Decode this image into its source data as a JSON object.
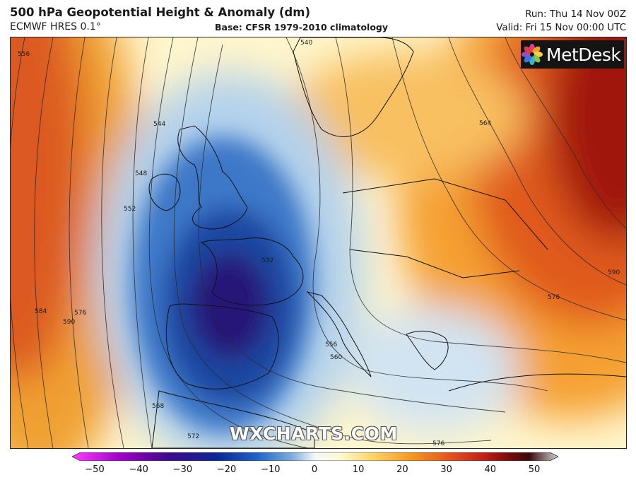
{
  "header": {
    "title": "500 hPa Geopotential Height & Anomaly (dm)",
    "model": "ECMWF HRES 0.1°",
    "base": "Base: CFSR 1979-2010 climatology",
    "run": "Run: Thu 14 Nov 00Z",
    "valid": "Valid: Fri 15 Nov 00:00 UTC"
  },
  "branding": {
    "logo_text": "MetDesk",
    "watermark": "WXCHARTS.COM"
  },
  "map": {
    "region": "Europe",
    "projection": "lambert-conformal",
    "contour_labels": [
      "556",
      "544",
      "548",
      "552",
      "584",
      "590",
      "576",
      "540",
      "564",
      "590",
      "576",
      "532",
      "556",
      "560",
      "568",
      "572",
      "576"
    ],
    "features": {
      "trough_center": "Iberian Peninsula / Bay of Biscay",
      "ridge_east": "Eastern Europe / Russia",
      "ridge_west": "Mid Atlantic"
    }
  },
  "colorbar": {
    "ticks": [
      "−50",
      "−40",
      "−30",
      "−20",
      "−10",
      "0",
      "10",
      "20",
      "30",
      "40",
      "50"
    ],
    "min": -50,
    "max": 50,
    "colors": [
      "#ff3cff",
      "#a000c8",
      "#3c0a8c",
      "#0a2896",
      "#1e64c8",
      "#78aadc",
      "#e6f0f8",
      "#fffad2",
      "#ffd264",
      "#f5961e",
      "#e6501e",
      "#be1e14",
      "#780a0a",
      "#b4b4b4"
    ]
  }
}
